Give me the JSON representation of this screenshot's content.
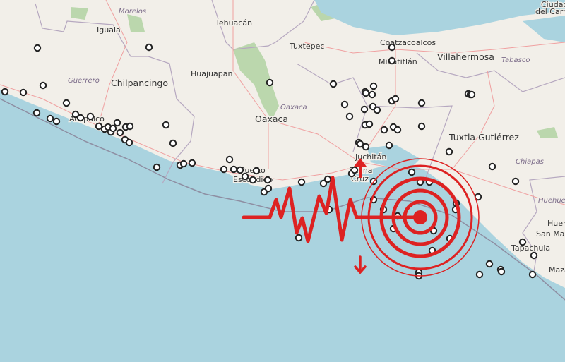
{
  "map": {
    "colors": {
      "land": "#f2efe9",
      "sea": "#aad3df",
      "forest": "#add19e",
      "border": "#9e8fa8",
      "road": "#f0a0a0",
      "marker": "#222222",
      "accent": "#dd2222"
    },
    "labels": {
      "morelos": "Morelos",
      "iguala": "Iguala",
      "tehuacan": "Tehuacán",
      "tuxtepec": "Tuxtepec",
      "coatzacoalcos": "Coatzacoalcos",
      "minatitlan": "Minatitlán",
      "villahermosa": "Villahermosa",
      "tabasco": "Tabasco",
      "ciudad_del": "Ciudad",
      "del_carmen": "del Carmen",
      "guerrero": "Guerrero",
      "chilpancingo": "Chilpancingo",
      "huajuapan": "Huajuapan",
      "oaxaca_state": "Oaxaca",
      "oaxaca_city": "Oaxaca",
      "acapulco": "Acapulco",
      "puerto": "Puerto",
      "escondido": "Escondido",
      "juchitan": "Juchitán",
      "salina": "Salina",
      "cruz": "Cruz",
      "tuxtla": "Tuxtla Gutiérrez",
      "chiapas": "Chiapas",
      "huehuetenango_state": "Huehuetenango",
      "huehuetenango": "Huehuetenango",
      "san_marcos": "San Marcos",
      "tapachula": "Tapachula",
      "mazatenango": "Mazatenango"
    },
    "icons": {
      "epicenter": "epicenter-target-icon",
      "seismogram": "seismogram-wave-icon",
      "arrow_up": "arrow-up-icon",
      "arrow_down": "arrow-down-icon",
      "marker": "earthquake-marker-icon"
    }
  }
}
